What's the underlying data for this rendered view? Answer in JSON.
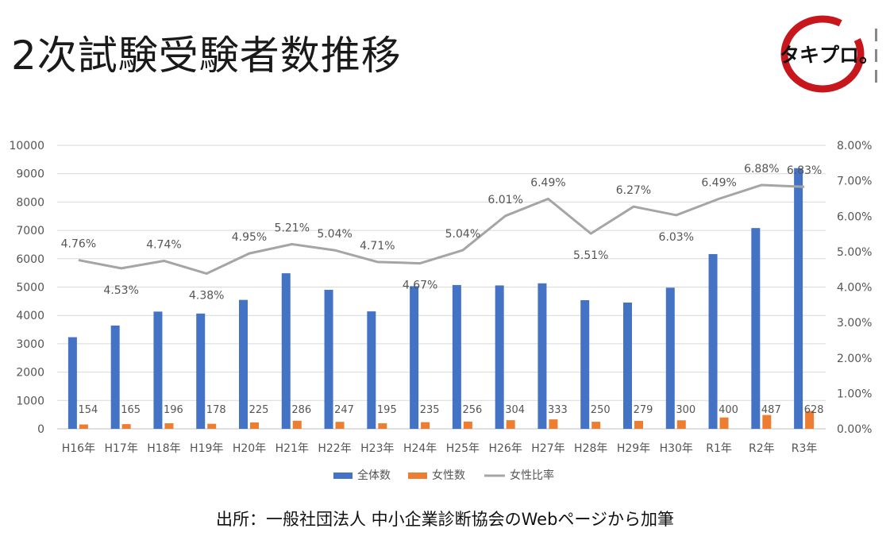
{
  "page": {
    "title": "2次試験受験者数推移",
    "source": "出所：一般社団法人 中小企業診断協会のWebページから加筆",
    "logo_text": "タキプロ。"
  },
  "colors": {
    "bar_total": "#4472c4",
    "bar_female": "#ed7d31",
    "line_ratio": "#a5a5a5",
    "logo_ring": "#c8161d"
  },
  "chart_data": {
    "type": "bar",
    "categories": [
      "H16年",
      "H17年",
      "H18年",
      "H19年",
      "H20年",
      "H21年",
      "H22年",
      "H23年",
      "H24年",
      "H25年",
      "H26年",
      "H27年",
      "H28年",
      "H29年",
      "H30年",
      "R1年",
      "R2年",
      "R3年"
    ],
    "series": [
      {
        "name": "全体数",
        "type": "bar",
        "axis": "left",
        "values": [
          3232,
          3643,
          4135,
          4066,
          4548,
          5487,
          4904,
          4143,
          5032,
          5073,
          5058,
          5132,
          4538,
          4453,
          4978,
          6164,
          7082,
          9195
        ]
      },
      {
        "name": "女性数",
        "type": "bar",
        "axis": "left",
        "values": [
          154,
          165,
          196,
          178,
          225,
          286,
          247,
          195,
          235,
          256,
          304,
          333,
          250,
          279,
          300,
          400,
          487,
          628
        ]
      },
      {
        "name": "女性比率",
        "type": "line",
        "axis": "right",
        "values": [
          4.76,
          4.53,
          4.74,
          4.38,
          4.95,
          5.21,
          5.04,
          4.71,
          4.67,
          5.04,
          6.01,
          6.49,
          5.51,
          6.27,
          6.03,
          6.49,
          6.88,
          6.83
        ],
        "labels": [
          "4.76%",
          "4.53%",
          "4.74%",
          "4.38%",
          "4.95%",
          "5.21%",
          "5.04%",
          "4.71%",
          "4.67%",
          "5.04%",
          "6.01%",
          "6.49%",
          "5.51%",
          "6.27%",
          "6.03%",
          "6.49%",
          "6.88%",
          "6.83%"
        ]
      }
    ],
    "y_left": {
      "min": 0,
      "max": 10000,
      "ticks": [
        "0",
        "1000",
        "2000",
        "3000",
        "4000",
        "5000",
        "6000",
        "7000",
        "8000",
        "9000",
        "10000"
      ]
    },
    "y_right": {
      "min": 0,
      "max": 8,
      "ticks": [
        "0.00%",
        "1.00%",
        "2.00%",
        "3.00%",
        "4.00%",
        "5.00%",
        "6.00%",
        "7.00%",
        "8.00%"
      ]
    },
    "legend": [
      "全体数",
      "女性数",
      "女性比率"
    ],
    "legend_position": "bottom",
    "grid": true
  }
}
